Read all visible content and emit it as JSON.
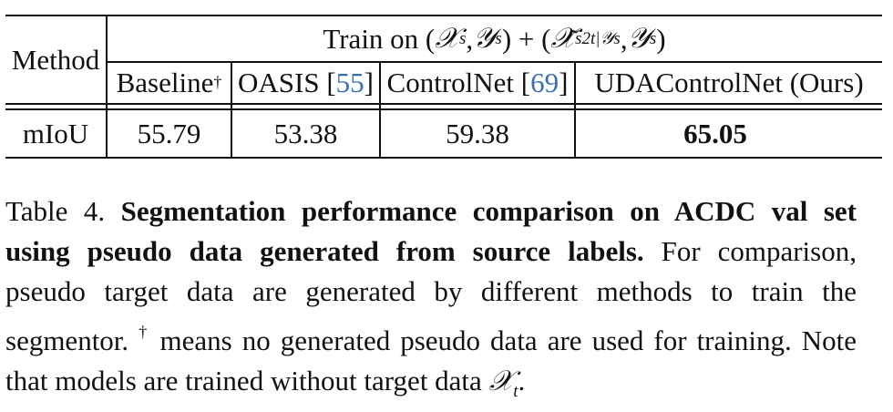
{
  "table": {
    "method_header": "Method",
    "train_on_prefix": "Train on (",
    "train_on_math_1": "𝒳",
    "train_on_sub_s1": "s",
    "train_on_sep1": ", ",
    "train_on_math_2": "𝒴",
    "train_on_sub_s2": "s",
    "train_on_mid": ") + (",
    "train_on_math_3": "𝒳̃",
    "train_on_sub_3": "s2t|𝒴s",
    "train_on_sep2": ", ",
    "train_on_math_4": "𝒴",
    "train_on_sub_s4": "s",
    "train_on_suffix": ")",
    "columns": [
      {
        "label": "Baseline",
        "sup": "†",
        "ref": ""
      },
      {
        "label": "OASIS [",
        "sup": "",
        "ref": "55",
        "close": "]"
      },
      {
        "label": "ControlNet [",
        "sup": "",
        "ref": "69",
        "close": "]"
      },
      {
        "label": "UDAControlNet (Ours)",
        "sup": "",
        "ref": ""
      }
    ],
    "row_label": "mIoU",
    "values": [
      "55.79",
      "53.38",
      "59.38",
      "65.05"
    ]
  },
  "caption": {
    "label": "Table 4. ",
    "title": "Segmentation performance comparison on ACDC val set using pseudo data generated from source labels.",
    "body_1": " For comparison, pseudo target data are generated by different methods to train the segmentor. ",
    "dagger": "†",
    "body_2": " means no generated pseudo data are used for training. Note that models are trained without target data ",
    "math_x": "𝒳",
    "math_sub": "t",
    "end": "."
  }
}
